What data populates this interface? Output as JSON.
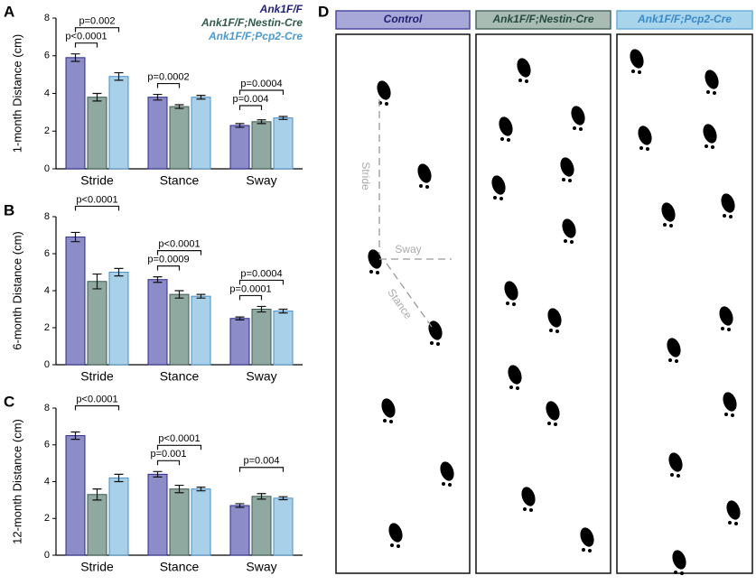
{
  "chart_data": [
    {
      "type": "bar",
      "panel": "A",
      "ylabel": "1-month Distance (cm)",
      "categories": [
        "Stride",
        "Stance",
        "Sway"
      ],
      "ylim": [
        0,
        8
      ],
      "yticks": [
        0,
        2,
        4,
        6,
        8
      ],
      "legend": "upper right",
      "series": [
        {
          "name": "Ank1F/F",
          "color": "#8c8cc8",
          "values": [
            5.9,
            3.8,
            2.3
          ],
          "errors": [
            0.2,
            0.15,
            0.1
          ]
        },
        {
          "name": "Ank1F/F;Nestin-Cre",
          "color": "#8fa8a0",
          "values": [
            3.8,
            3.3,
            2.5
          ],
          "errors": [
            0.2,
            0.1,
            0.1
          ]
        },
        {
          "name": "Ank1F/F;Pcp2-Cre",
          "color": "#a8d0e8",
          "values": [
            4.9,
            3.8,
            2.7
          ],
          "errors": [
            0.2,
            0.1,
            0.08
          ]
        }
      ],
      "annotations": [
        [
          "p<0.0001",
          "p=0.002"
        ],
        [
          "p=0.0002",
          null
        ],
        [
          "p=0.004",
          "p=0.0004"
        ]
      ]
    },
    {
      "type": "bar",
      "panel": "B",
      "ylabel": "6-month Distance (cm)",
      "categories": [
        "Stride",
        "Stance",
        "Sway"
      ],
      "ylim": [
        0,
        8
      ],
      "yticks": [
        0,
        2,
        4,
        6,
        8
      ],
      "series": [
        {
          "name": "Ank1F/F",
          "color": "#8c8cc8",
          "values": [
            6.9,
            4.6,
            2.5
          ],
          "errors": [
            0.25,
            0.15,
            0.08
          ]
        },
        {
          "name": "Ank1F/F;Nestin-Cre",
          "color": "#8fa8a0",
          "values": [
            4.5,
            3.8,
            3.0
          ],
          "errors": [
            0.4,
            0.2,
            0.15
          ]
        },
        {
          "name": "Ank1F/F;Pcp2-Cre",
          "color": "#a8d0e8",
          "values": [
            5.0,
            3.7,
            2.9
          ],
          "errors": [
            0.2,
            0.1,
            0.1
          ]
        }
      ],
      "annotations": [
        [
          null,
          "p<0.0001"
        ],
        [
          "p=0.0009",
          "p<0.0001"
        ],
        [
          "p=0.0001",
          "p=0.0004"
        ]
      ]
    },
    {
      "type": "bar",
      "panel": "C",
      "ylabel": "12-month Distance (cm)",
      "categories": [
        "Stride",
        "Stance",
        "Sway"
      ],
      "ylim": [
        0,
        8
      ],
      "yticks": [
        0,
        2,
        4,
        6,
        8
      ],
      "series": [
        {
          "name": "Ank1F/F",
          "color": "#8c8cc8",
          "values": [
            6.5,
            4.4,
            2.7
          ],
          "errors": [
            0.2,
            0.15,
            0.1
          ]
        },
        {
          "name": "Ank1F/F;Nestin-Cre",
          "color": "#8fa8a0",
          "values": [
            3.3,
            3.6,
            3.2
          ],
          "errors": [
            0.3,
            0.2,
            0.15
          ]
        },
        {
          "name": "Ank1F/F;Pcp2-Cre",
          "color": "#a8d0e8",
          "values": [
            4.2,
            3.6,
            3.1
          ],
          "errors": [
            0.2,
            0.1,
            0.08
          ]
        }
      ],
      "annotations": [
        [
          null,
          "p<0.0001"
        ],
        [
          "p=0.001",
          "p<0.0001"
        ],
        [
          null,
          "p=0.004"
        ]
      ]
    }
  ],
  "footprints": {
    "panel": "D",
    "columns": [
      "Control",
      "Ank1F/F;Nestin-Cre",
      "Ank1F/F;Pcp2-Cre"
    ],
    "labels": [
      "Stride",
      "Sway",
      "Stance"
    ]
  }
}
